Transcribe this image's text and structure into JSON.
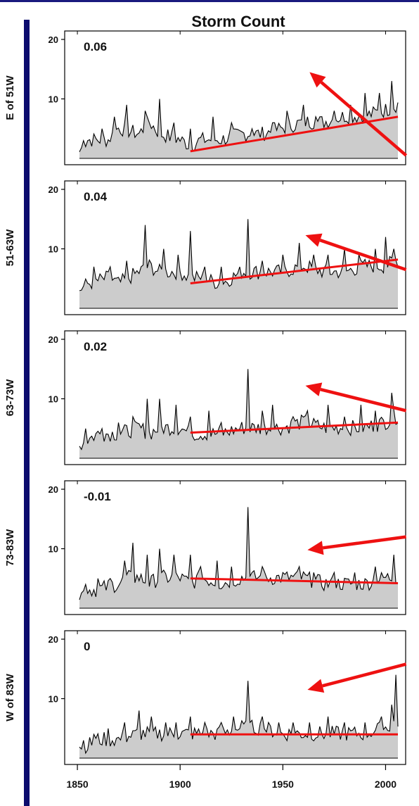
{
  "chart_data": {
    "type": "area",
    "title": "Storm Count",
    "xlabel": "",
    "x_range": [
      1851,
      2006
    ],
    "x_ticks": [
      "1850",
      "1900",
      "1950",
      "2000"
    ],
    "y_range": [
      0,
      20
    ],
    "y_ticks": [
      "10",
      "20"
    ],
    "annotation_color": "#ee1111",
    "trend_color": "#ee1111",
    "fill_color": "#cccccc",
    "panels": [
      {
        "ylabel": "E of 51W",
        "trend_label": "0.06",
        "trend": {
          "x0": 1905,
          "y0": 1.2,
          "x1": 2006,
          "y1": 7.0
        },
        "envelope": [
          [
            1851,
            1
          ],
          [
            1855,
            3
          ],
          [
            1865,
            3
          ],
          [
            1870,
            5
          ],
          [
            1880,
            4
          ],
          [
            1885,
            6
          ],
          [
            1890,
            4
          ],
          [
            1900,
            3
          ],
          [
            1905,
            2
          ],
          [
            1910,
            3
          ],
          [
            1920,
            3
          ],
          [
            1930,
            4
          ],
          [
            1940,
            4
          ],
          [
            1950,
            5
          ],
          [
            1960,
            6
          ],
          [
            1970,
            6
          ],
          [
            1980,
            7
          ],
          [
            1990,
            7
          ],
          [
            2000,
            8
          ],
          [
            2006,
            9
          ]
        ],
        "peaks": [
          [
            1853,
            3
          ],
          [
            1862,
            5
          ],
          [
            1868,
            7
          ],
          [
            1874,
            9
          ],
          [
            1883,
            8
          ],
          [
            1890,
            10
          ],
          [
            1897,
            6
          ],
          [
            1905,
            5
          ],
          [
            1916,
            7
          ],
          [
            1925,
            6
          ],
          [
            1935,
            5
          ],
          [
            1945,
            6
          ],
          [
            1952,
            8
          ],
          [
            1960,
            9
          ],
          [
            1966,
            7
          ],
          [
            1975,
            8
          ],
          [
            1983,
            9
          ],
          [
            1990,
            11
          ],
          [
            1997,
            11
          ],
          [
            2003,
            13
          ]
        ],
        "arrow": {
          "from_x": 2010,
          "from_y": 0.5,
          "to_x": 1963,
          "to_y": 14.5
        }
      },
      {
        "ylabel": "51-63W",
        "trend_label": "0.04",
        "trend": {
          "x0": 1905,
          "y0": 4.2,
          "x1": 2006,
          "y1": 8.2
        },
        "envelope": [
          [
            1851,
            3
          ],
          [
            1855,
            4
          ],
          [
            1865,
            5
          ],
          [
            1870,
            4
          ],
          [
            1880,
            6
          ],
          [
            1885,
            7
          ],
          [
            1890,
            6
          ],
          [
            1900,
            6
          ],
          [
            1905,
            5
          ],
          [
            1910,
            5
          ],
          [
            1920,
            4
          ],
          [
            1930,
            6
          ],
          [
            1940,
            6
          ],
          [
            1950,
            6
          ],
          [
            1960,
            7
          ],
          [
            1970,
            6
          ],
          [
            1980,
            6
          ],
          [
            1990,
            7
          ],
          [
            2000,
            7
          ],
          [
            2006,
            8
          ]
        ],
        "peaks": [
          [
            1858,
            7
          ],
          [
            1866,
            7
          ],
          [
            1874,
            8
          ],
          [
            1883,
            14
          ],
          [
            1892,
            10
          ],
          [
            1899,
            9
          ],
          [
            1905,
            13
          ],
          [
            1912,
            7
          ],
          [
            1920,
            7
          ],
          [
            1933,
            15
          ],
          [
            1940,
            8
          ],
          [
            1950,
            9
          ],
          [
            1958,
            11
          ],
          [
            1965,
            9
          ],
          [
            1972,
            9
          ],
          [
            1980,
            10
          ],
          [
            1987,
            9
          ],
          [
            1995,
            10
          ],
          [
            2000,
            12
          ],
          [
            2004,
            10
          ]
        ],
        "arrow": {
          "from_x": 2010,
          "from_y": 6.5,
          "to_x": 1961,
          "to_y": 12.3
        }
      },
      {
        "ylabel": "63-73W",
        "trend_label": "0.02",
        "trend": {
          "x0": 1905,
          "y0": 4.3,
          "x1": 2006,
          "y1": 6.0
        },
        "envelope": [
          [
            1851,
            2
          ],
          [
            1855,
            3
          ],
          [
            1860,
            4
          ],
          [
            1870,
            4
          ],
          [
            1880,
            5
          ],
          [
            1885,
            4
          ],
          [
            1890,
            5
          ],
          [
            1900,
            5
          ],
          [
            1905,
            4
          ],
          [
            1910,
            4
          ],
          [
            1920,
            4
          ],
          [
            1930,
            5
          ],
          [
            1940,
            5
          ],
          [
            1950,
            5
          ],
          [
            1960,
            6
          ],
          [
            1970,
            5
          ],
          [
            1980,
            5
          ],
          [
            1990,
            5
          ],
          [
            2000,
            6
          ],
          [
            2006,
            7
          ]
        ],
        "peaks": [
          [
            1854,
            5
          ],
          [
            1862,
            5
          ],
          [
            1870,
            6
          ],
          [
            1877,
            7
          ],
          [
            1884,
            10
          ],
          [
            1890,
            10
          ],
          [
            1898,
            9
          ],
          [
            1905,
            7
          ],
          [
            1914,
            8
          ],
          [
            1920,
            6
          ],
          [
            1933,
            15
          ],
          [
            1940,
            8
          ],
          [
            1945,
            9
          ],
          [
            1955,
            7
          ],
          [
            1962,
            8
          ],
          [
            1972,
            9
          ],
          [
            1980,
            7
          ],
          [
            1988,
            9
          ],
          [
            1995,
            8
          ],
          [
            2003,
            11
          ]
        ],
        "arrow": {
          "from_x": 2010,
          "from_y": 8.0,
          "to_x": 1961,
          "to_y": 12.2
        }
      },
      {
        "ylabel": "73-83W",
        "trend_label": "-0.01",
        "trend": {
          "x0": 1905,
          "y0": 5.0,
          "x1": 2006,
          "y1": 4.2
        },
        "envelope": [
          [
            1851,
            2
          ],
          [
            1855,
            3
          ],
          [
            1860,
            3
          ],
          [
            1870,
            4
          ],
          [
            1875,
            5
          ],
          [
            1880,
            5
          ],
          [
            1885,
            4
          ],
          [
            1890,
            5
          ],
          [
            1900,
            5
          ],
          [
            1905,
            4
          ],
          [
            1910,
            5
          ],
          [
            1920,
            4
          ],
          [
            1930,
            5
          ],
          [
            1940,
            5
          ],
          [
            1950,
            5
          ],
          [
            1960,
            5
          ],
          [
            1970,
            4
          ],
          [
            1980,
            4
          ],
          [
            1990,
            4
          ],
          [
            2000,
            5
          ],
          [
            2006,
            5
          ]
        ],
        "peaks": [
          [
            1854,
            4
          ],
          [
            1860,
            5
          ],
          [
            1866,
            5
          ],
          [
            1873,
            8
          ],
          [
            1877,
            11
          ],
          [
            1884,
            9
          ],
          [
            1890,
            10
          ],
          [
            1897,
            9
          ],
          [
            1905,
            9
          ],
          [
            1910,
            7
          ],
          [
            1918,
            8
          ],
          [
            1925,
            7
          ],
          [
            1933,
            17
          ],
          [
            1940,
            7
          ],
          [
            1950,
            6
          ],
          [
            1958,
            7
          ],
          [
            1965,
            6
          ],
          [
            1975,
            6
          ],
          [
            1985,
            6
          ],
          [
            1995,
            7
          ],
          [
            2004,
            9
          ]
        ],
        "arrow": {
          "from_x": 2010,
          "from_y": 12.0,
          "to_x": 1962,
          "to_y": 9.8
        }
      },
      {
        "ylabel": "W of 83W",
        "trend_label": "0",
        "trend": {
          "x0": 1905,
          "y0": 4.0,
          "x1": 2006,
          "y1": 4.0
        },
        "envelope": [
          [
            1851,
            2
          ],
          [
            1855,
            2
          ],
          [
            1860,
            3
          ],
          [
            1870,
            3
          ],
          [
            1880,
            4
          ],
          [
            1890,
            4
          ],
          [
            1900,
            4
          ],
          [
            1910,
            4
          ],
          [
            1920,
            4
          ],
          [
            1930,
            5
          ],
          [
            1940,
            5
          ],
          [
            1950,
            4
          ],
          [
            1960,
            4
          ],
          [
            1970,
            4
          ],
          [
            1980,
            4
          ],
          [
            1990,
            4
          ],
          [
            2000,
            5
          ],
          [
            2006,
            6
          ]
        ],
        "peaks": [
          [
            1853,
            3
          ],
          [
            1858,
            4
          ],
          [
            1865,
            5
          ],
          [
            1873,
            6
          ],
          [
            1880,
            8
          ],
          [
            1886,
            7
          ],
          [
            1893,
            6
          ],
          [
            1898,
            6
          ],
          [
            1905,
            7
          ],
          [
            1912,
            6
          ],
          [
            1920,
            6
          ],
          [
            1926,
            7
          ],
          [
            1933,
            13
          ],
          [
            1940,
            7
          ],
          [
            1948,
            6
          ],
          [
            1955,
            6
          ],
          [
            1963,
            6
          ],
          [
            1972,
            7
          ],
          [
            1980,
            6
          ],
          [
            1990,
            6
          ],
          [
            1998,
            7
          ],
          [
            2003,
            9
          ],
          [
            2005,
            14
          ]
        ],
        "arrow": {
          "from_x": 2010,
          "from_y": 15.8,
          "to_x": 1962,
          "to_y": 11.5
        }
      }
    ]
  }
}
